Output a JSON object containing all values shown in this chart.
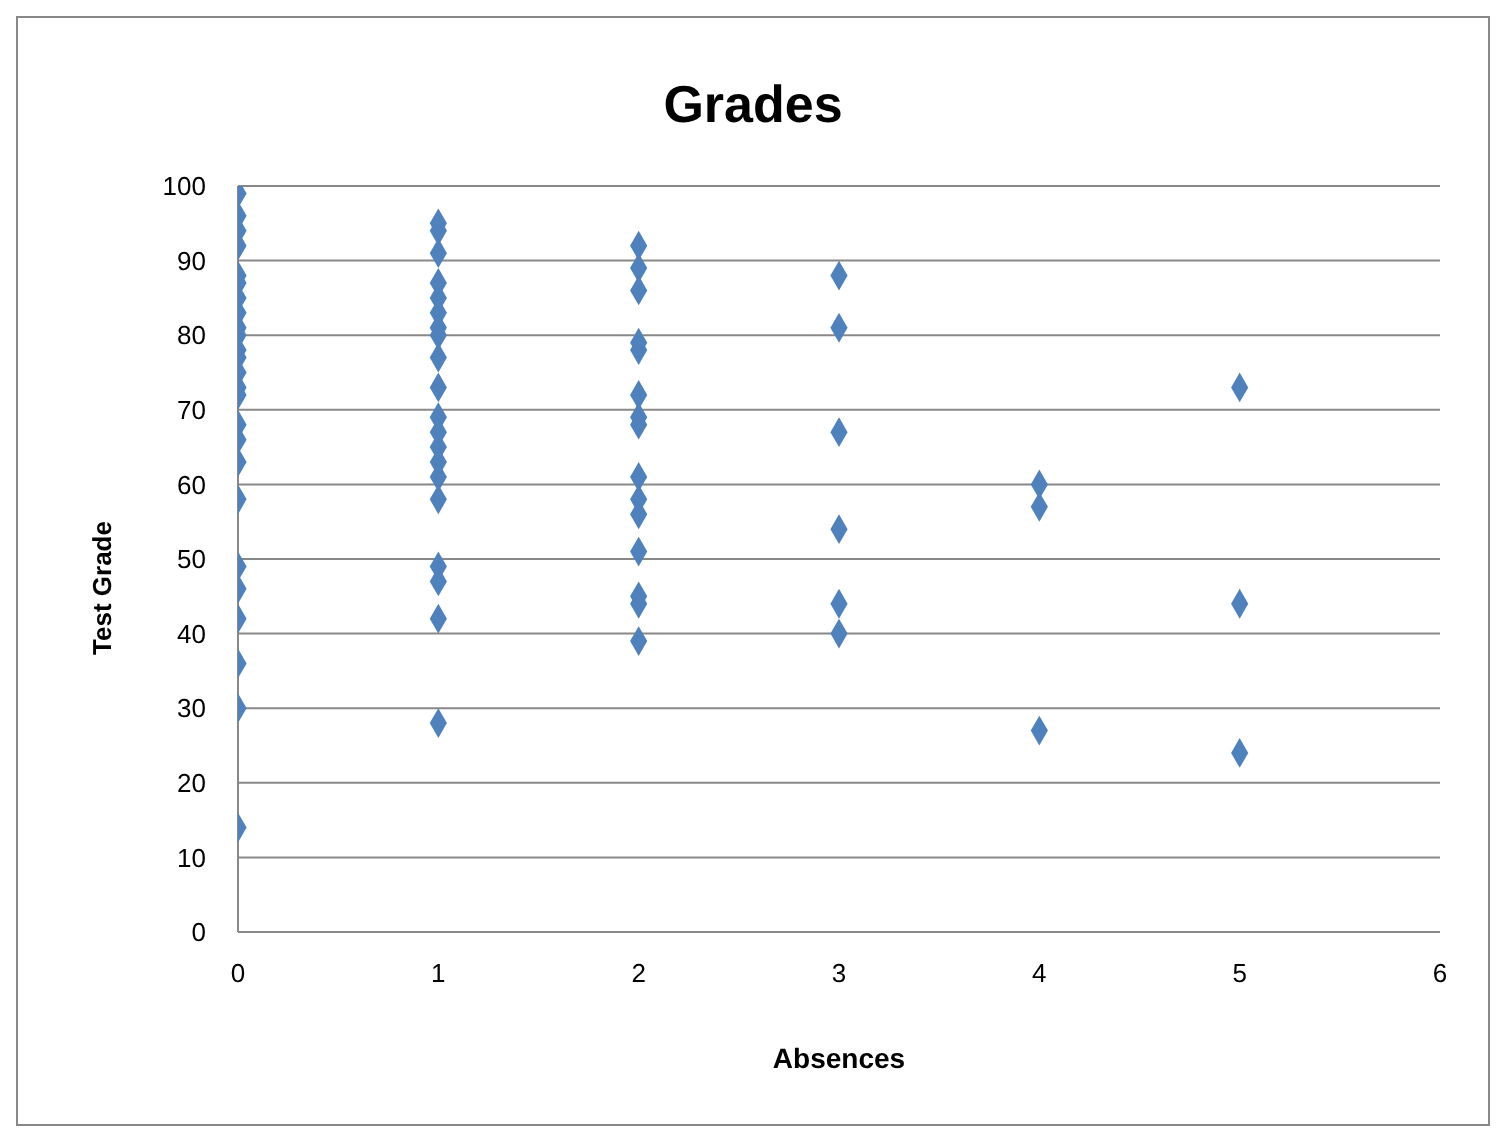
{
  "chart_data": {
    "type": "scatter",
    "title": "Grades",
    "xlabel": "Absences",
    "ylabel": "Test Grade",
    "x": [
      0,
      0,
      0,
      0,
      0,
      0,
      0,
      0,
      0,
      0,
      0,
      0,
      0,
      0,
      0,
      0,
      0,
      0,
      0,
      0,
      0,
      0,
      0,
      0,
      0,
      1,
      1,
      1,
      1,
      1,
      1,
      1,
      1,
      1,
      1,
      1,
      1,
      1,
      1,
      1,
      1,
      1,
      1,
      1,
      1,
      2,
      2,
      2,
      2,
      2,
      2,
      2,
      2,
      2,
      2,
      2,
      2,
      2,
      2,
      2,
      3,
      3,
      3,
      3,
      3,
      3,
      4,
      4,
      4,
      5,
      5,
      5
    ],
    "values": [
      99,
      96,
      94,
      92,
      88,
      87,
      85,
      83,
      81,
      80,
      78,
      77,
      75,
      73,
      72,
      68,
      66,
      63,
      58,
      49,
      46,
      42,
      36,
      30,
      14,
      95,
      94,
      91,
      87,
      85,
      83,
      81,
      80,
      77,
      73,
      69,
      67,
      65,
      63,
      61,
      58,
      49,
      47,
      42,
      28,
      92,
      89,
      86,
      79,
      78,
      72,
      69,
      68,
      61,
      58,
      56,
      51,
      45,
      44,
      39,
      88,
      81,
      67,
      54,
      44,
      40,
      60,
      57,
      27,
      73,
      44,
      24
    ],
    "color": "#4f81bd",
    "marker": "diamond",
    "xlim": [
      0,
      6
    ],
    "xticks": [
      0,
      1,
      2,
      3,
      4,
      5,
      6
    ],
    "ylim": [
      0,
      100
    ],
    "yticks": [
      0,
      10,
      20,
      30,
      40,
      50,
      60,
      70,
      80,
      90,
      100
    ],
    "grid": "y",
    "legend": false
  }
}
